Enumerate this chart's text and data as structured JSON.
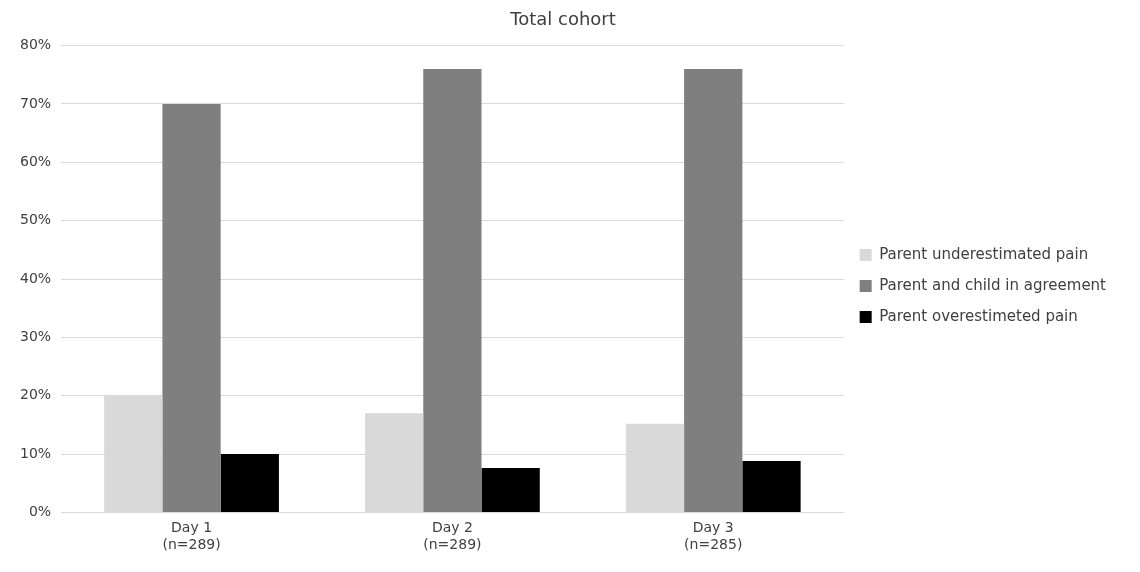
{
  "chart_data": {
    "type": "bar",
    "title": "Total cohort",
    "categories": [
      "Day 1\n(n=289)",
      "Day 2\n(n=289)",
      "Day 3\n(n=285)"
    ],
    "series": [
      {
        "name": "Parent underestimated pain",
        "color": "#d9d9d9",
        "values": [
          20,
          17,
          15.2
        ]
      },
      {
        "name": "Parent and child in agreement",
        "color": "#7f7f7f",
        "values": [
          70,
          76,
          76
        ]
      },
      {
        "name": "Parent overestimeted pain",
        "color": "#000000",
        "values": [
          10,
          7.6,
          8.8
        ]
      }
    ],
    "ylim": [
      0,
      80
    ],
    "yticks": [
      {
        "value": 0,
        "label": "0%"
      },
      {
        "value": 10,
        "label": "10%"
      },
      {
        "value": 20,
        "label": "20%"
      },
      {
        "value": 30,
        "label": "30%"
      },
      {
        "value": 40,
        "label": "40%"
      },
      {
        "value": 50,
        "label": "50%"
      },
      {
        "value": 60,
        "label": "60%"
      },
      {
        "value": 70,
        "label": "70%"
      },
      {
        "value": 80,
        "label": "80%"
      }
    ],
    "grid": "y",
    "legend": "right"
  }
}
